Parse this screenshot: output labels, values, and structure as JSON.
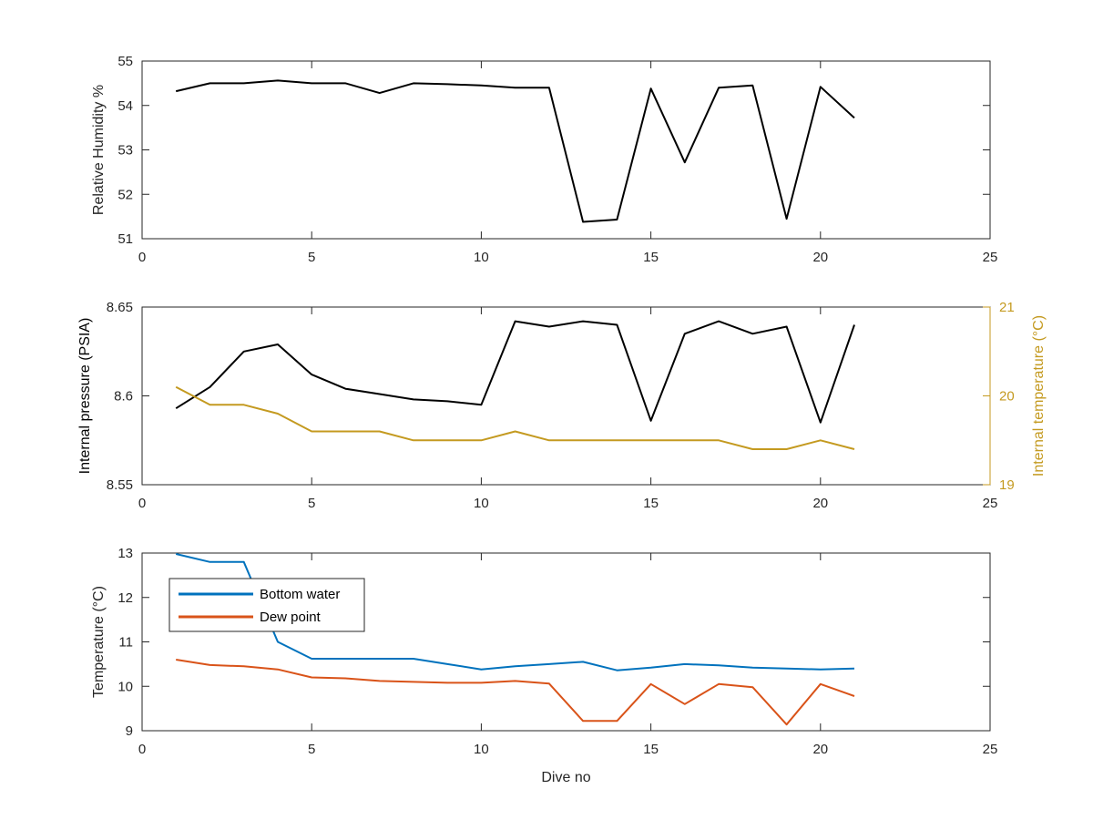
{
  "colors": {
    "axis": "#262626",
    "black": "#000000",
    "blue": "#0072BD",
    "orange": "#D95319",
    "gold": "#C49A20"
  },
  "chart_data": [
    {
      "type": "line",
      "ylabel": "Relative Humidity %",
      "xlim": [
        0,
        25
      ],
      "ylim": [
        51,
        55
      ],
      "xticks": [
        "0",
        "5",
        "10",
        "15",
        "20",
        "25"
      ],
      "yticks": [
        "51",
        "52",
        "53",
        "54",
        "55"
      ],
      "grid": false,
      "series": [
        {
          "color": "#000000",
          "x": [
            1,
            2,
            3,
            4,
            5,
            6,
            7,
            8,
            9,
            10,
            11,
            12,
            13,
            14,
            15,
            16,
            17,
            18,
            19,
            20,
            21
          ],
          "y": [
            54.32,
            54.5,
            54.5,
            54.56,
            54.5,
            54.5,
            54.28,
            54.5,
            54.48,
            54.45,
            54.4,
            54.4,
            51.38,
            51.43,
            54.38,
            52.72,
            54.4,
            54.45,
            51.45,
            54.42,
            53.72
          ]
        }
      ]
    },
    {
      "type": "line",
      "ylabel": "Internal pressure (PSIA)",
      "y2label": "Internal temperature (°C)",
      "xlim": [
        0,
        25
      ],
      "ylim": [
        8.55,
        8.65
      ],
      "y2lim": [
        19,
        21
      ],
      "xticks": [
        "0",
        "5",
        "10",
        "15",
        "20",
        "25"
      ],
      "yticks": [
        "8.55",
        "8.6",
        "8.65"
      ],
      "y2ticks": [
        "19",
        "20",
        "21"
      ],
      "grid": false,
      "series": [
        {
          "axis": "left",
          "color": "#000000",
          "x": [
            1,
            2,
            3,
            4,
            5,
            6,
            7,
            8,
            9,
            10,
            11,
            12,
            13,
            14,
            15,
            16,
            17,
            18,
            19,
            20,
            21
          ],
          "y": [
            8.593,
            8.605,
            8.625,
            8.629,
            8.612,
            8.604,
            8.601,
            8.598,
            8.597,
            8.595,
            8.642,
            8.639,
            8.642,
            8.64,
            8.586,
            8.635,
            8.642,
            8.635,
            8.639,
            8.585,
            8.64
          ]
        },
        {
          "axis": "right",
          "color": "#C49A20",
          "x": [
            1,
            2,
            3,
            4,
            5,
            6,
            7,
            8,
            9,
            10,
            11,
            12,
            13,
            14,
            15,
            16,
            17,
            18,
            19,
            20,
            21
          ],
          "y": [
            20.1,
            19.9,
            19.9,
            19.8,
            19.6,
            19.6,
            19.6,
            19.5,
            19.5,
            19.5,
            19.6,
            19.5,
            19.5,
            19.5,
            19.5,
            19.5,
            19.5,
            19.4,
            19.4,
            19.5,
            19.4
          ]
        }
      ]
    },
    {
      "type": "line",
      "xlabel": "Dive no",
      "ylabel": "Temperature (°C)",
      "xlim": [
        0,
        25
      ],
      "ylim": [
        9,
        13
      ],
      "xticks": [
        "0",
        "5",
        "10",
        "15",
        "20",
        "25"
      ],
      "yticks": [
        "9",
        "10",
        "11",
        "12",
        "13"
      ],
      "grid": false,
      "legend": "top-left",
      "series": [
        {
          "name": "Bottom water",
          "color": "#0072BD",
          "x": [
            1,
            2,
            3,
            4,
            5,
            6,
            7,
            8,
            9,
            10,
            11,
            12,
            13,
            14,
            15,
            16,
            17,
            18,
            19,
            20,
            21
          ],
          "y": [
            12.98,
            12.8,
            12.8,
            11.0,
            10.62,
            10.62,
            10.62,
            10.62,
            10.5,
            10.38,
            10.45,
            10.5,
            10.55,
            10.36,
            10.42,
            10.5,
            10.47,
            10.42,
            10.4,
            10.38,
            10.4
          ]
        },
        {
          "name": "Dew point",
          "color": "#D95319",
          "x": [
            1,
            2,
            3,
            4,
            5,
            6,
            7,
            8,
            9,
            10,
            11,
            12,
            13,
            14,
            15,
            16,
            17,
            18,
            19,
            20,
            21
          ],
          "y": [
            10.6,
            10.48,
            10.45,
            10.38,
            10.2,
            10.18,
            10.12,
            10.1,
            10.08,
            10.08,
            10.12,
            10.06,
            9.22,
            9.22,
            10.05,
            9.6,
            10.05,
            9.98,
            9.14,
            10.05,
            9.78
          ]
        }
      ]
    }
  ]
}
